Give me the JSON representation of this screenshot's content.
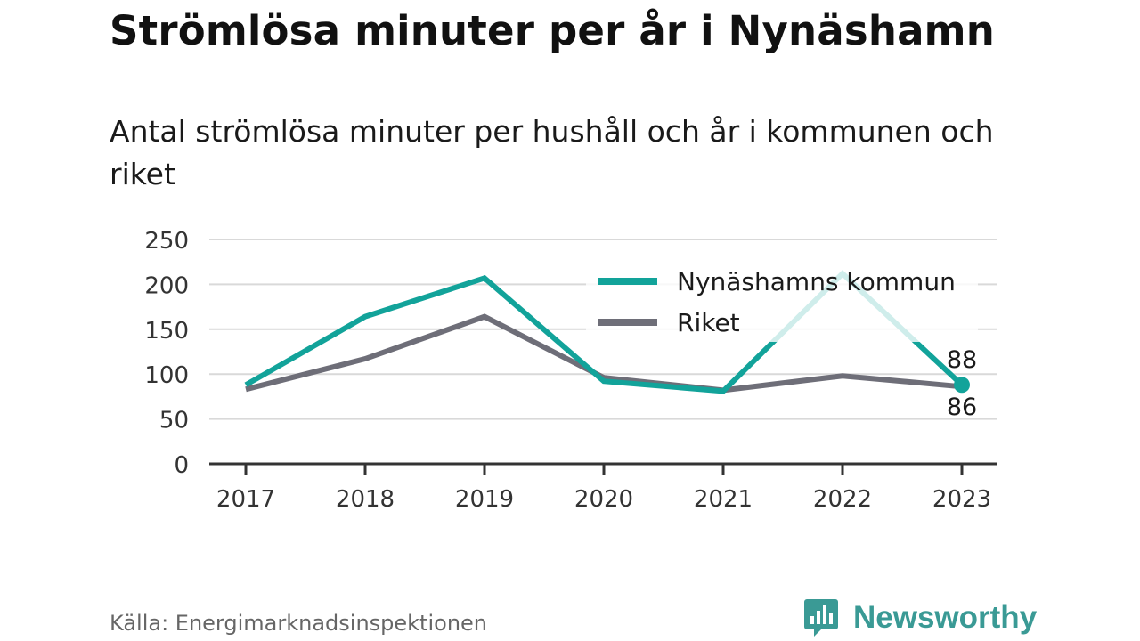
{
  "title": "Strömlösa minuter per år i Nynäshamn",
  "subtitle": "Antal strömlösa minuter per hushåll och år i kommunen och riket",
  "source": "Källa: Energimarknadsinspektionen",
  "brand": "Newsworthy",
  "chart_data": {
    "type": "line",
    "x": [
      "2017",
      "2018",
      "2019",
      "2020",
      "2021",
      "2022",
      "2023"
    ],
    "ylim": [
      0,
      250
    ],
    "yticks": [
      0,
      50,
      100,
      150,
      200,
      250
    ],
    "grid": true,
    "legend_position": "top-right",
    "series": [
      {
        "name": "Nynäshamns kommun",
        "values": [
          88,
          164,
          207,
          92,
          81,
          212,
          88
        ],
        "color": "#12a39a"
      },
      {
        "name": "Riket",
        "values": [
          83,
          117,
          164,
          96,
          82,
          98,
          86
        ],
        "color": "#6e6e78"
      }
    ],
    "annotations": [
      {
        "series": 0,
        "x": "2023",
        "label": "88"
      },
      {
        "series": 1,
        "x": "2023",
        "label": "86"
      }
    ]
  },
  "colors": {
    "kommun": "#12a39a",
    "riket": "#6e6e78",
    "grid": "#d9d9d9",
    "axis": "#333333",
    "brand": "#3a9a95"
  }
}
